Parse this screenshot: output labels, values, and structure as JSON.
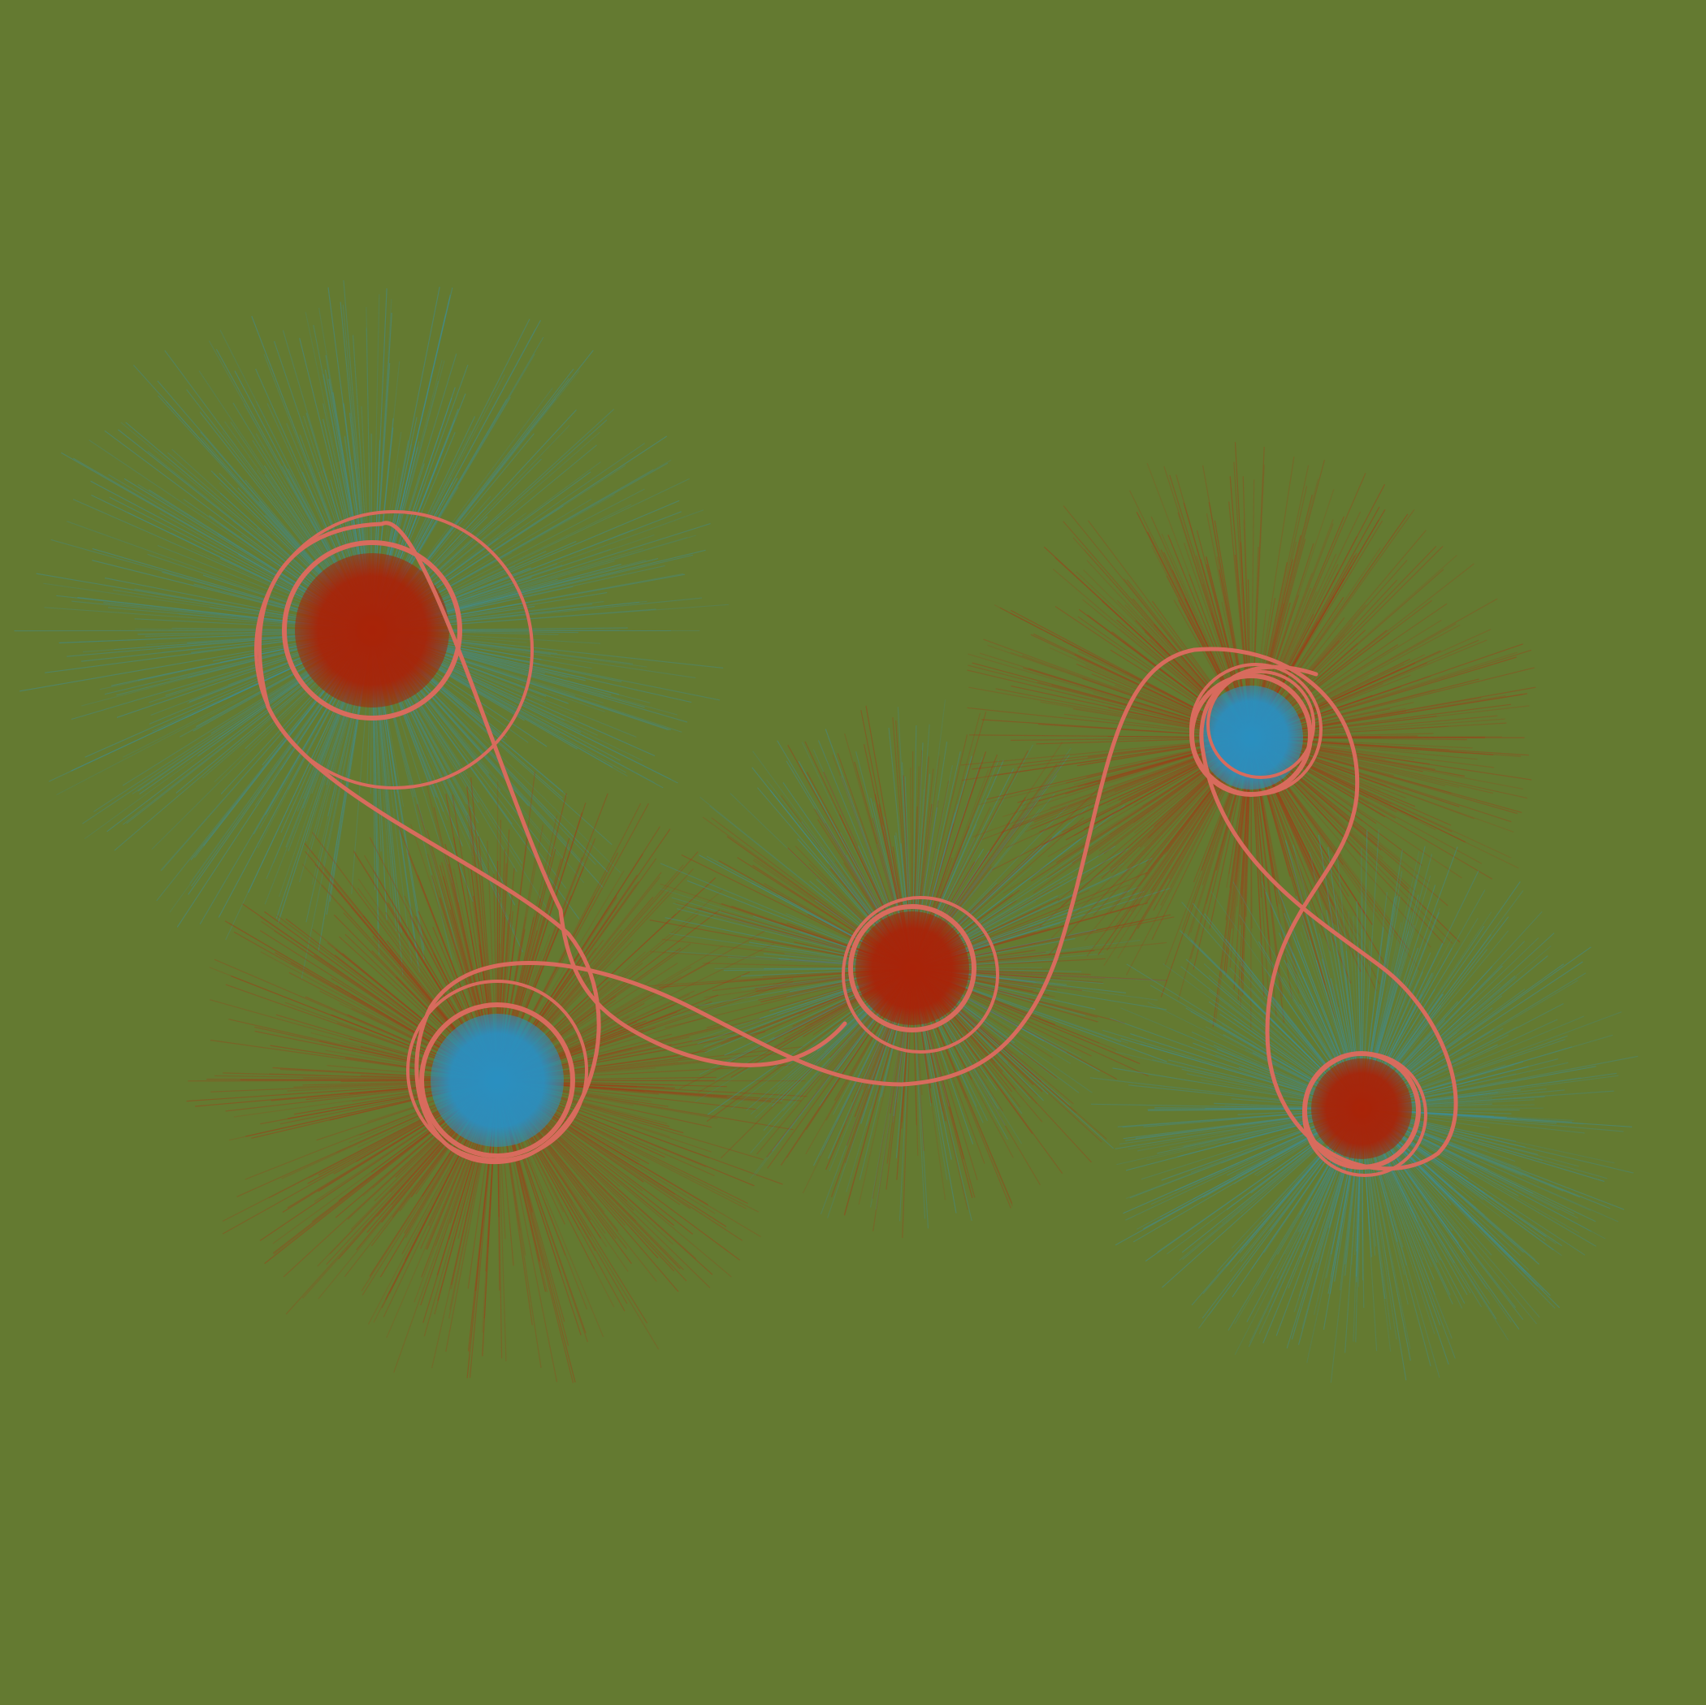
{
  "colors": {
    "background": "#647a31",
    "ring": "#d86b5d",
    "red": "#a82308",
    "red_halo": "#a33a16",
    "blue": "#2a8fc0",
    "blue_halo": "#3d8f9c"
  },
  "nodes": [
    {
      "name": "node-top-left",
      "core": "red",
      "halo": "blue"
    },
    {
      "name": "node-bottom-left",
      "core": "blue",
      "halo": "red"
    },
    {
      "name": "node-center",
      "core": "red",
      "halo": "mixed"
    },
    {
      "name": "node-top-right",
      "core": "blue",
      "halo": "red"
    },
    {
      "name": "node-bottom-right",
      "core": "red",
      "halo": "blue"
    }
  ]
}
